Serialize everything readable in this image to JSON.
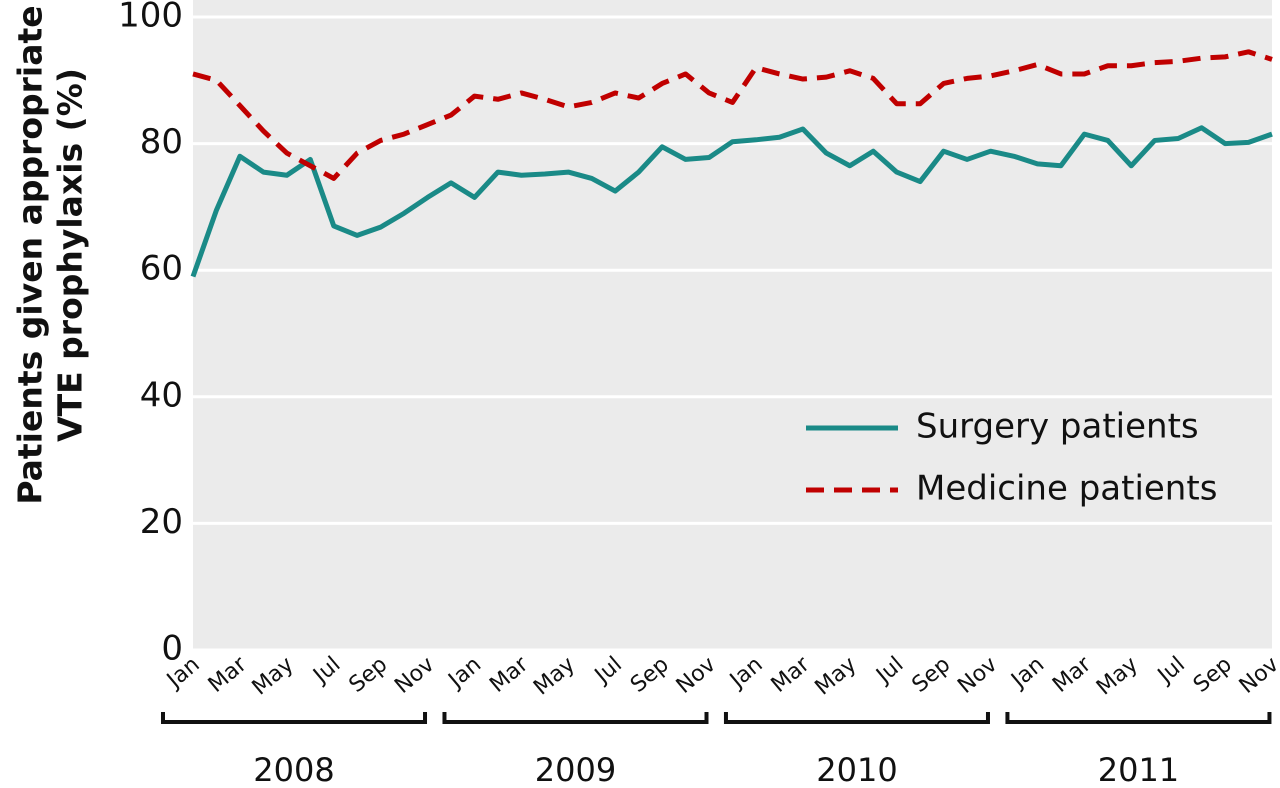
{
  "chart_data": {
    "type": "line",
    "ylabel": [
      "Patients given appropriate",
      "VTE prophylaxis (%)"
    ],
    "categories": [
      "Jan",
      null,
      "Mar",
      null,
      "May",
      null,
      "Jul",
      null,
      "Sep",
      null,
      "Nov",
      null,
      "Jan",
      null,
      "Mar",
      null,
      "May",
      null,
      "Jul",
      null,
      "Sep",
      null,
      "Nov",
      null,
      "Jan",
      null,
      "Mar",
      null,
      "May",
      null,
      "Jul",
      null,
      "Sep",
      null,
      "Nov",
      null,
      "Jan",
      null,
      "Mar",
      null,
      "May",
      null,
      "Jul",
      null,
      "Sep",
      null,
      "Nov"
    ],
    "year_groups": [
      "2008",
      "2009",
      "2010",
      "2011"
    ],
    "series": [
      {
        "name": "Surgery patients",
        "color": "#1a8a87",
        "dash": false,
        "values": [
          59,
          69.5,
          78,
          75.5,
          75,
          77.5,
          67,
          65.5,
          66.8,
          69,
          71.5,
          73.8,
          71.5,
          75.5,
          75,
          75.2,
          75.5,
          74.5,
          72.5,
          75.5,
          79.5,
          77.5,
          77.8,
          80.3,
          80.6,
          81,
          82.3,
          78.5,
          76.5,
          78.8,
          75.5,
          74,
          78.8,
          77.5,
          78.8,
          78,
          76.8,
          76.5,
          81.5,
          80.5,
          76.5,
          80.5,
          80.8,
          82.5,
          80,
          80.2,
          81.5
        ]
      },
      {
        "name": "Medicine patients",
        "color": "#c00000",
        "dash": true,
        "values": [
          91,
          90,
          86,
          82,
          78.5,
          76.5,
          74.5,
          78.5,
          80.5,
          81.5,
          83,
          84.5,
          87.5,
          87,
          88,
          87,
          85.8,
          86.5,
          88,
          87.2,
          89.5,
          91,
          88,
          86.5,
          92,
          91,
          90.2,
          90.5,
          91.5,
          90.3,
          86.3,
          86.3,
          89.5,
          90.3,
          90.7,
          91.5,
          92.5,
          91,
          91,
          92.3,
          92.3,
          92.8,
          93,
          93.5,
          93.7,
          94.5,
          93.3
        ]
      }
    ],
    "ylim": [
      0,
      100
    ],
    "yticks": [
      0,
      20,
      40,
      60,
      80,
      100
    ],
    "grid": true,
    "legend": "center-right"
  }
}
